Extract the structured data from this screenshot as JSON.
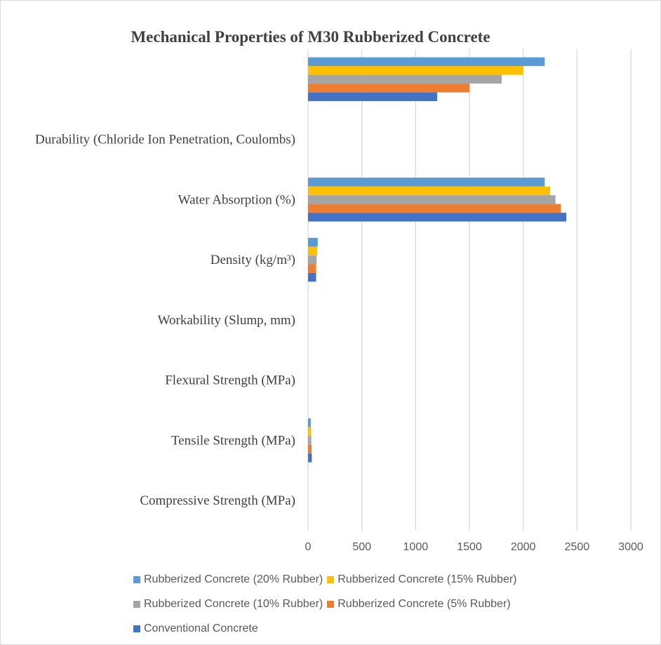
{
  "chart_data": {
    "type": "bar",
    "orientation": "horizontal",
    "title": "Mechanical Properties of M30 Rubberized Concrete",
    "categories": [
      "Compressive Strength (MPa)",
      "Tensile Strength (MPa)",
      "Flexural Strength (MPa)",
      "Workability (Slump, mm)",
      "Density (kg/m³)",
      "Water Absorption (%)",
      "Durability (Chloride Ion Penetration, Coulombs)",
      ""
    ],
    "series": [
      {
        "name": "Conventional Concrete",
        "color": "#4472C4",
        "values": [
          0,
          35,
          0,
          0,
          75,
          2400,
          0,
          1200
        ]
      },
      {
        "name": "Rubberized Concrete (5% Rubber)",
        "color": "#ED7D31",
        "values": [
          0,
          33,
          0,
          0,
          75,
          2350,
          0,
          1500
        ]
      },
      {
        "name": "Rubberized Concrete (10% Rubber)",
        "color": "#A5A5A5",
        "values": [
          0,
          30,
          0,
          0,
          80,
          2300,
          0,
          1800
        ]
      },
      {
        "name": "Rubberized Concrete (15% Rubber)",
        "color": "#FFC000",
        "values": [
          0,
          28,
          0,
          0,
          85,
          2250,
          0,
          2000
        ]
      },
      {
        "name": "Rubberized Concrete (20% Rubber)",
        "color": "#5B9BD5",
        "values": [
          0,
          25,
          0,
          0,
          90,
          2200,
          0,
          2200
        ]
      }
    ],
    "xlim": [
      0,
      3000
    ],
    "xticks": [
      0,
      500,
      1000,
      1500,
      2000,
      2500,
      3000
    ],
    "grid": true,
    "legend_position": "bottom"
  }
}
